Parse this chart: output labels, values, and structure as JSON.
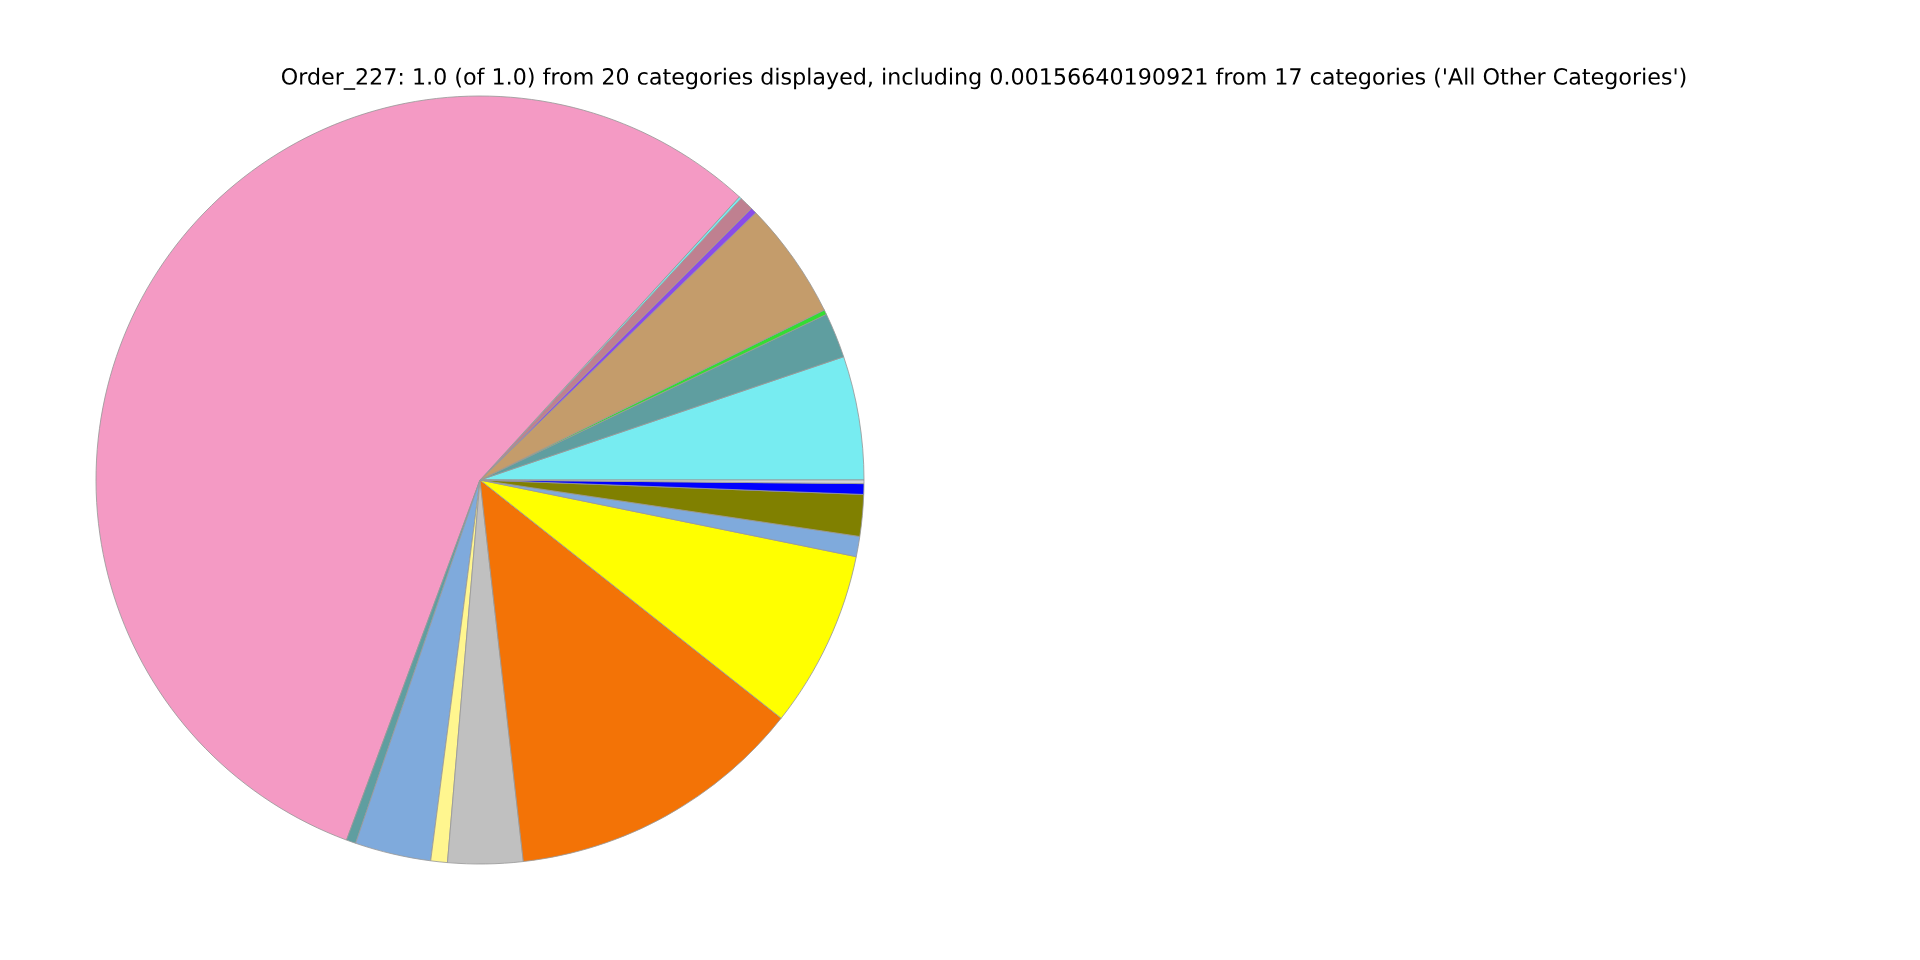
{
  "chart_data": {
    "type": "pie",
    "title": "Order_227: 1.0 (of 1.0) from 20 categories displayed, including 0.00156640190921 from 17 categories ('All Other Categories')",
    "categories": [
      null,
      null,
      null,
      null,
      null,
      null,
      null,
      null,
      null,
      null,
      null,
      null,
      null,
      null,
      null,
      null,
      null,
      null
    ],
    "values": [
      5.2,
      1.9,
      0.2,
      4.95,
      0.25,
      0.6,
      0.1,
      56.15,
      0.4,
      3.2,
      0.7,
      3.15,
      12.55,
      7.45,
      0.85,
      1.75,
      0.45,
      0.15
    ],
    "colors": [
      "#77ecf1",
      "#5f9ea0",
      "#33dd33",
      "#c49c6b",
      "#8b4ce8",
      "#bf8090",
      "#77ecf1",
      "#f49ac4",
      "#5f9ea0",
      "#7faadc",
      "#fff68f",
      "#c0c0c0",
      "#f37306",
      "#ffff00",
      "#7faadc",
      "#808000",
      "#0000ff",
      "#d3d3d3"
    ]
  }
}
